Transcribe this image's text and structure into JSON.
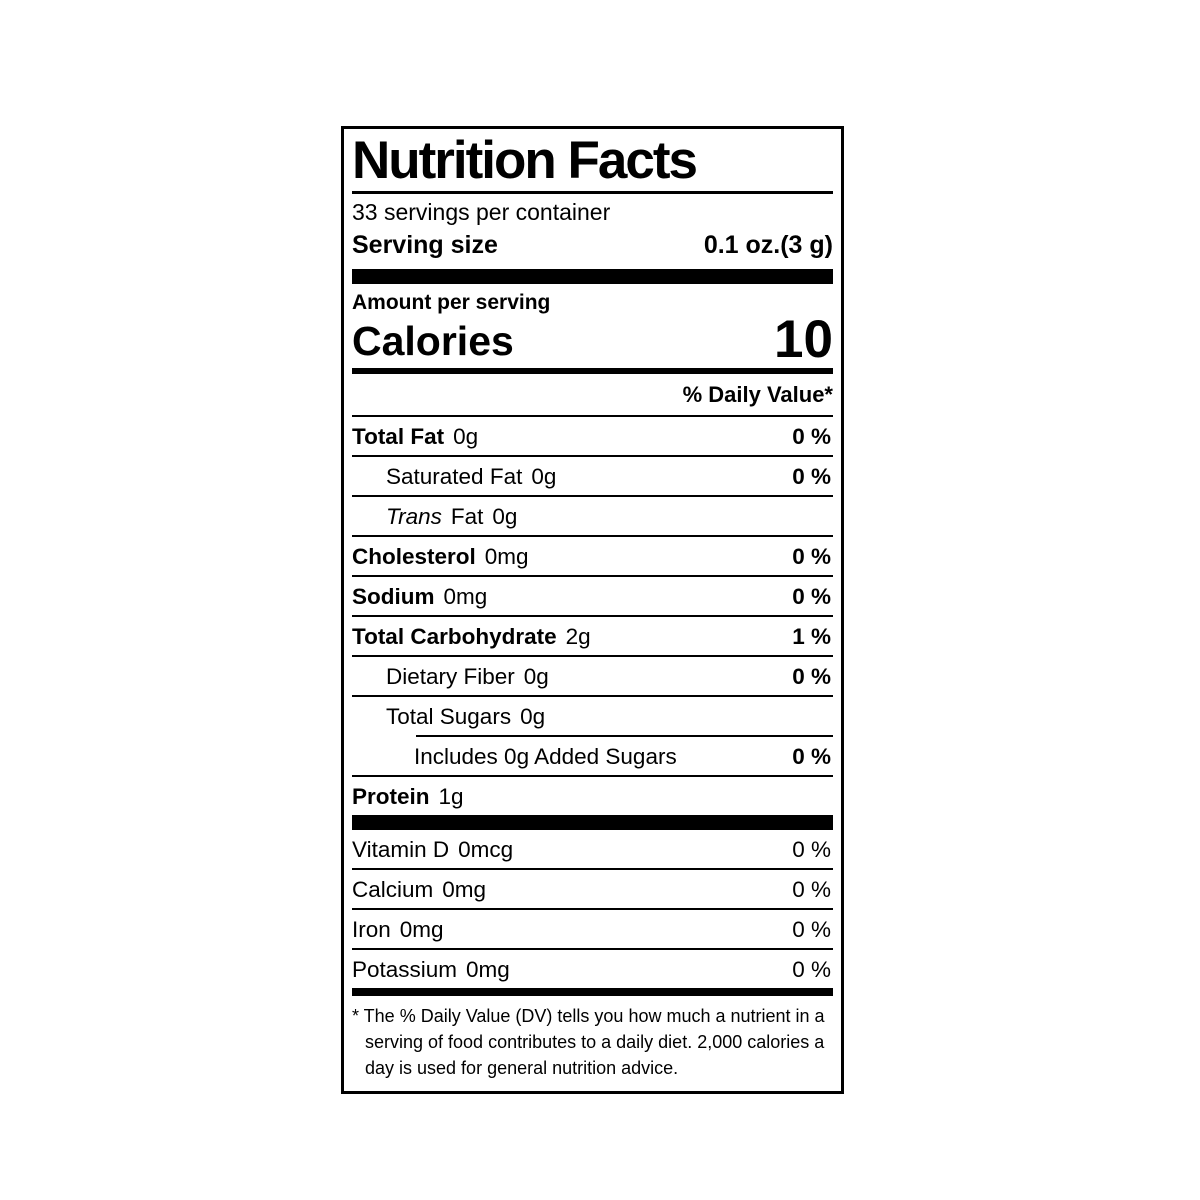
{
  "label": {
    "title": "Nutrition Facts",
    "servings_per_container": "33 servings per container",
    "serving_size_label": "Serving size",
    "serving_size_value": "0.1 oz.(3 g)",
    "amount_per_serving": "Amount per serving",
    "calories_label": "Calories",
    "calories_value": "10",
    "daily_value_header": "% Daily Value*",
    "nutrients": [
      {
        "name": "Total Fat",
        "amount": "0g",
        "dv": "0 %"
      },
      {
        "name": "Saturated Fat",
        "amount": "0g",
        "dv": "0 %"
      },
      {
        "name_italic": "Trans",
        "name_rest": "Fat",
        "amount": "0g",
        "dv": ""
      },
      {
        "name": "Cholesterol",
        "amount": "0mg",
        "dv": "0 %"
      },
      {
        "name": "Sodium",
        "amount": "0mg",
        "dv": "0 %"
      },
      {
        "name": "Total Carbohydrate",
        "amount": "2g",
        "dv": "1 %"
      },
      {
        "name": "Dietary Fiber",
        "amount": "0g",
        "dv": "0 %"
      },
      {
        "name": "Total Sugars",
        "amount": "0g",
        "dv": ""
      },
      {
        "name": "Includes 0g Added Sugars",
        "amount": "",
        "dv": "0 %"
      },
      {
        "name": "Protein",
        "amount": "1g",
        "dv": ""
      }
    ],
    "micronutrients": [
      {
        "name": "Vitamin D",
        "amount": "0mcg",
        "dv": "0 %"
      },
      {
        "name": "Calcium",
        "amount": "0mg",
        "dv": "0 %"
      },
      {
        "name": "Iron",
        "amount": "0mg",
        "dv": "0 %"
      },
      {
        "name": "Potassium",
        "amount": "0mg",
        "dv": "0 %"
      }
    ],
    "footnote": "* The % Daily Value (DV) tells you how much a nutrient in a serving of food contributes to a daily diet. 2,000 calories a day is used for general nutrition advice."
  },
  "colors": {
    "ink": "#000000",
    "background": "#ffffff"
  }
}
